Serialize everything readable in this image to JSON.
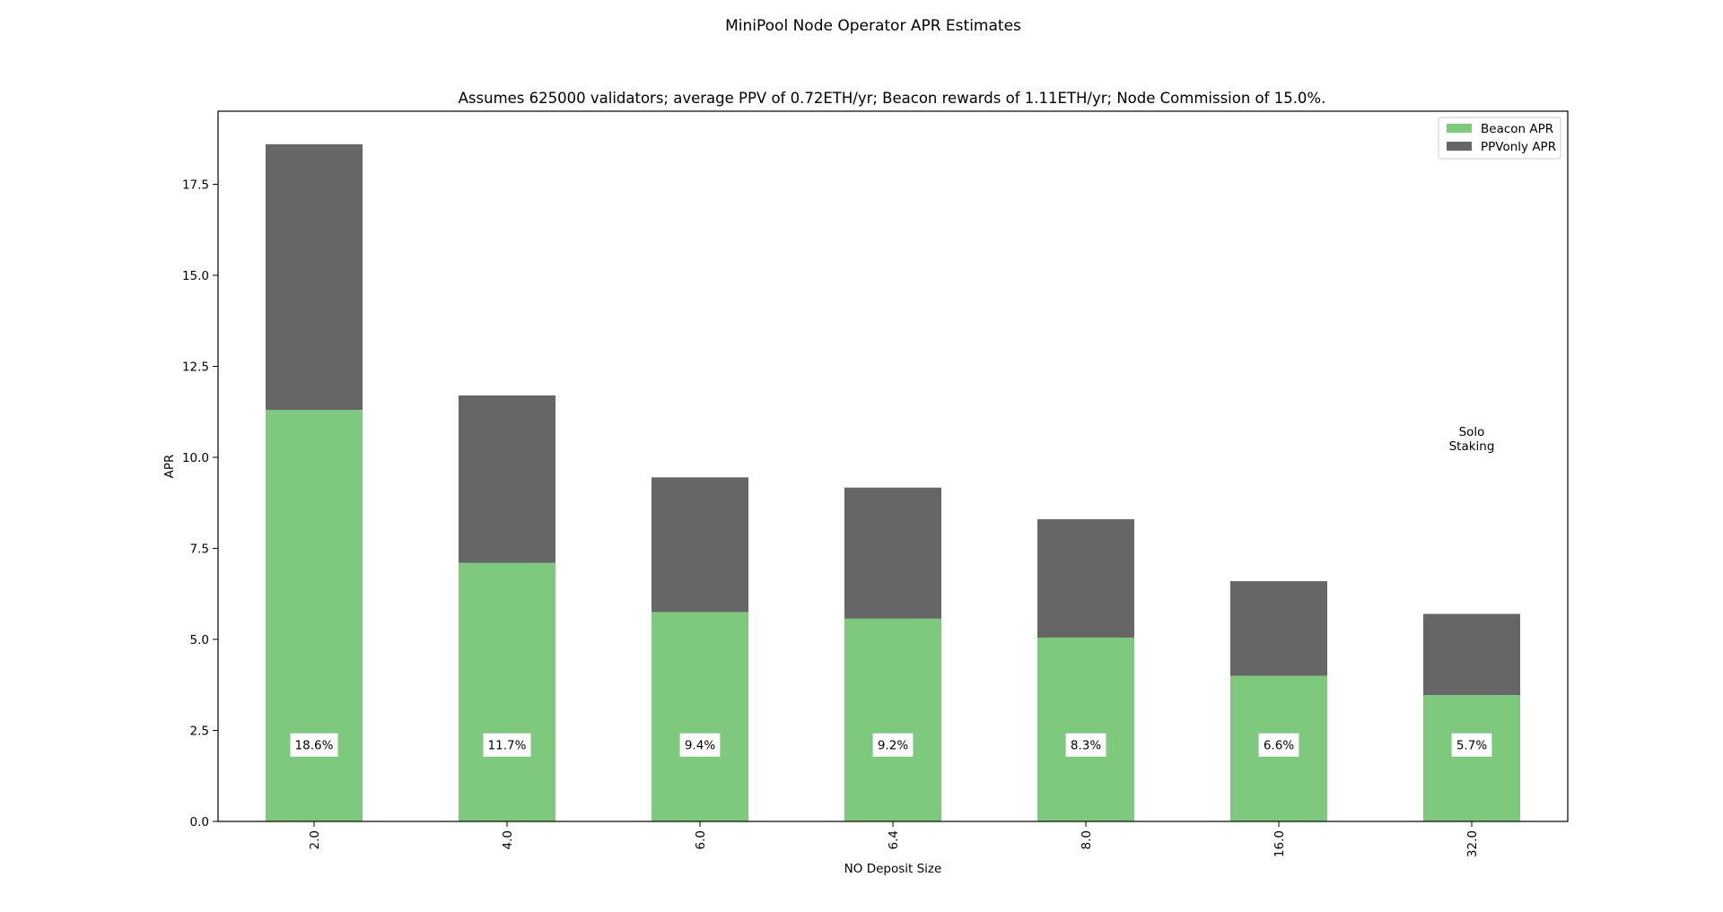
{
  "chart_data": {
    "type": "bar",
    "stacked": true,
    "suptitle": "MiniPool Node Operator APR Estimates",
    "title": "Assumes 625000 validators; average PPV of 0.72ETH/yr; Beacon rewards of 1.11ETH/yr; Node Commission of 15.0%.",
    "xlabel": "NO Deposit Size",
    "ylabel": "APR",
    "categories": [
      "2.0",
      "4.0",
      "6.0",
      "6.4",
      "8.0",
      "16.0",
      "32.0"
    ],
    "series": [
      {
        "name": "Beacon APR",
        "color": "#7fc97f",
        "values": [
          11.3,
          7.1,
          5.75,
          5.57,
          5.05,
          4.0,
          3.47
        ]
      },
      {
        "name": "PPVonly APR",
        "color": "#666666",
        "values": [
          7.3,
          4.6,
          3.7,
          3.6,
          3.25,
          2.6,
          2.23
        ]
      }
    ],
    "totals_labels": [
      "18.6%",
      "11.7%",
      "9.4%",
      "9.2%",
      "8.3%",
      "6.6%",
      "5.7%"
    ],
    "yticks": [
      0.0,
      2.5,
      5.0,
      7.5,
      10.0,
      12.5,
      15.0,
      17.5
    ],
    "ytick_labels": [
      "0.0",
      "2.5",
      "5.0",
      "7.5",
      "10.0",
      "12.5",
      "15.0",
      "17.5"
    ],
    "ylim": [
      0,
      19.5
    ],
    "legend": "top-right",
    "grid": false,
    "annotation": {
      "lines": [
        "Solo",
        "Staking"
      ],
      "category": "32.0",
      "y": 10.2
    },
    "data_label_y": 2.1
  }
}
